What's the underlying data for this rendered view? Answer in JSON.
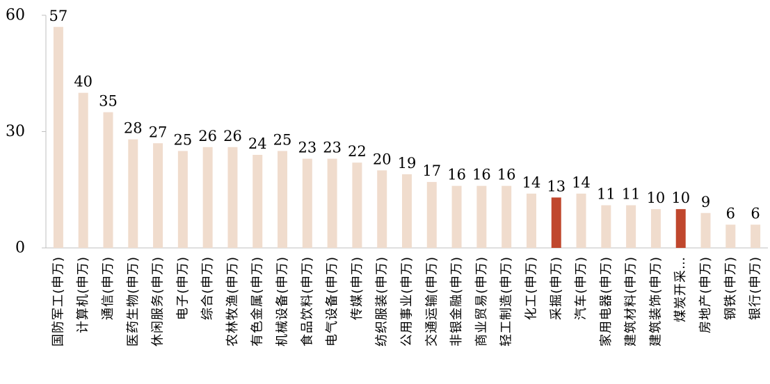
{
  "chart_data": {
    "type": "bar",
    "title": "",
    "xlabel": "",
    "ylabel": "",
    "ylim": [
      0,
      60
    ],
    "yticks": [
      0,
      30,
      60
    ],
    "grid": false,
    "legend": "none",
    "colors": {
      "default": "#f0dccd",
      "highlight": "#c0472d"
    },
    "categories": [
      "国防军工(申万)",
      "计算机(申万)",
      "通信(申万)",
      "医药生物(申万)",
      "休闲服务(申万)",
      "电子(申万)",
      "综合(申万)",
      "农林牧渔(申万)",
      "有色金属(申万)",
      "机械设备(申万)",
      "食品饮料(申万)",
      "电气设备(申万)",
      "传媒(申万)",
      "纺织服装(申万)",
      "公用事业(申万)",
      "交通运输(申万)",
      "非银金融(申万)",
      "商业贸易(申万)",
      "轻工制造(申万)",
      "化工(申万)",
      "采掘(申万)",
      "汽车(申万)",
      "家用电器(申万)",
      "建筑材料(申万)",
      "建筑装饰(申万)",
      "煤炭开采…",
      "房地产(申万)",
      "钢铁(申万)",
      "银行(申万)"
    ],
    "values": [
      57,
      40,
      35,
      28,
      27,
      25,
      26,
      26,
      24,
      25,
      23,
      23,
      22,
      20,
      19,
      17,
      16,
      16,
      16,
      14,
      13,
      14,
      11,
      11,
      10,
      10,
      9,
      6,
      6
    ],
    "labels": [
      "57",
      "40",
      "35",
      "28",
      "27",
      "25",
      "26",
      "26",
      "24",
      "25",
      "23",
      "23",
      "22",
      "20",
      "19",
      "17",
      "16",
      "16",
      "16",
      "14",
      "13",
      "14",
      "11",
      "11",
      "10",
      "10",
      "9",
      "6",
      "6"
    ],
    "highlighted": [
      "采掘(申万)",
      "煤炭开采…"
    ]
  }
}
